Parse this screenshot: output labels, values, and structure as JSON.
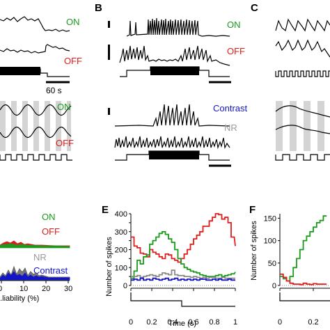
{
  "panels": {
    "A": {
      "on": "ON",
      "off": "OFF",
      "scale": "60 s",
      "on2": "ON",
      "off2": "OFF"
    },
    "B": {
      "letter": "B",
      "on": "ON",
      "off": "OFF",
      "contrast": "Contrast",
      "nr": "NR"
    },
    "C": {
      "letter": "C"
    },
    "D": {
      "on": "ON",
      "off": "OFF",
      "nr": "NR",
      "contrast": "Contrast",
      "xlabel": "...liability (%)",
      "xticks": [
        "0",
        "10",
        "20",
        "30"
      ]
    },
    "E": {
      "letter": "E",
      "xlabel": "Time (s)",
      "ylabel": "Number of spikes"
    },
    "F": {
      "letter": "F",
      "ylabel": "Number of spikes"
    }
  },
  "colors": {
    "on": "#1a9a1a",
    "off": "#e01b1b",
    "nr": "#888888",
    "contrast": "#1515c8"
  },
  "chart_data": [
    {
      "type": "line",
      "panel": "E",
      "xlabel": "Time (s)",
      "ylabel": "Number of spikes",
      "xlim": [
        0,
        1
      ],
      "ylim": [
        0,
        400
      ],
      "xticks": [
        "0",
        "0.2",
        "0.4",
        "0.6",
        "0.8",
        "1"
      ],
      "yticks": [
        "0",
        "50",
        "100",
        "150",
        "200",
        "250",
        "300",
        "350",
        "400"
      ],
      "x": [
        0,
        0.03,
        0.06,
        0.09,
        0.12,
        0.15,
        0.18,
        0.21,
        0.24,
        0.27,
        0.3,
        0.33,
        0.36,
        0.39,
        0.42,
        0.45,
        0.48,
        0.51,
        0.54,
        0.57,
        0.6,
        0.63,
        0.66,
        0.69,
        0.72,
        0.75,
        0.78,
        0.81,
        0.84,
        0.87,
        0.9,
        0.93,
        0.96,
        1.0
      ],
      "series": [
        {
          "color": "#e01b1b",
          "values": [
            270,
            220,
            210,
            180,
            175,
            160,
            200,
            185,
            175,
            160,
            150,
            175,
            170,
            150,
            140,
            130,
            150,
            175,
            200,
            230,
            260,
            280,
            300,
            330,
            330,
            360,
            380,
            400,
            395,
            370,
            380,
            350,
            270,
            220
          ]
        },
        {
          "color": "#1a9a1a",
          "values": [
            40,
            80,
            140,
            120,
            160,
            170,
            230,
            250,
            270,
            290,
            300,
            285,
            260,
            240,
            200,
            150,
            120,
            100,
            90,
            80,
            75,
            70,
            60,
            55,
            50,
            50,
            50,
            55,
            60,
            50,
            55,
            60,
            65,
            75
          ]
        },
        {
          "color": "#888888",
          "values": [
            50,
            50,
            55,
            45,
            50,
            55,
            60,
            55,
            50,
            60,
            70,
            65,
            60,
            85,
            60,
            55,
            55,
            50,
            50,
            45,
            50,
            45,
            40,
            45,
            40,
            45,
            45,
            40,
            40,
            45,
            40,
            40,
            40,
            40
          ]
        },
        {
          "color": "#1515c8",
          "values": [
            30,
            35,
            30,
            40,
            30,
            35,
            30,
            40,
            35,
            30,
            35,
            40,
            30,
            35,
            40,
            30,
            35,
            30,
            35,
            30,
            35,
            30,
            35,
            35,
            30,
            30,
            35,
            30,
            35,
            30,
            30,
            35,
            30,
            30
          ]
        }
      ]
    },
    {
      "type": "line",
      "panel": "F",
      "ylabel": "Number of spikes",
      "xlim": [
        0,
        0.3
      ],
      "ylim": [
        0,
        160
      ],
      "xticks": [
        "0",
        "0.2"
      ],
      "yticks": [
        "0",
        "50",
        "100",
        "150"
      ],
      "x": [
        0,
        0.02,
        0.04,
        0.06,
        0.08,
        0.1,
        0.12,
        0.14,
        0.16,
        0.18,
        0.2,
        0.22,
        0.24,
        0.26
      ],
      "series": [
        {
          "color": "#1a9a1a",
          "values": [
            20,
            15,
            10,
            20,
            40,
            60,
            80,
            100,
            110,
            120,
            130,
            140,
            145,
            155
          ]
        },
        {
          "color": "#e01b1b",
          "values": [
            25,
            18,
            10,
            5,
            3,
            3,
            2,
            5,
            3,
            2,
            4,
            3,
            3,
            3
          ]
        }
      ]
    }
  ]
}
